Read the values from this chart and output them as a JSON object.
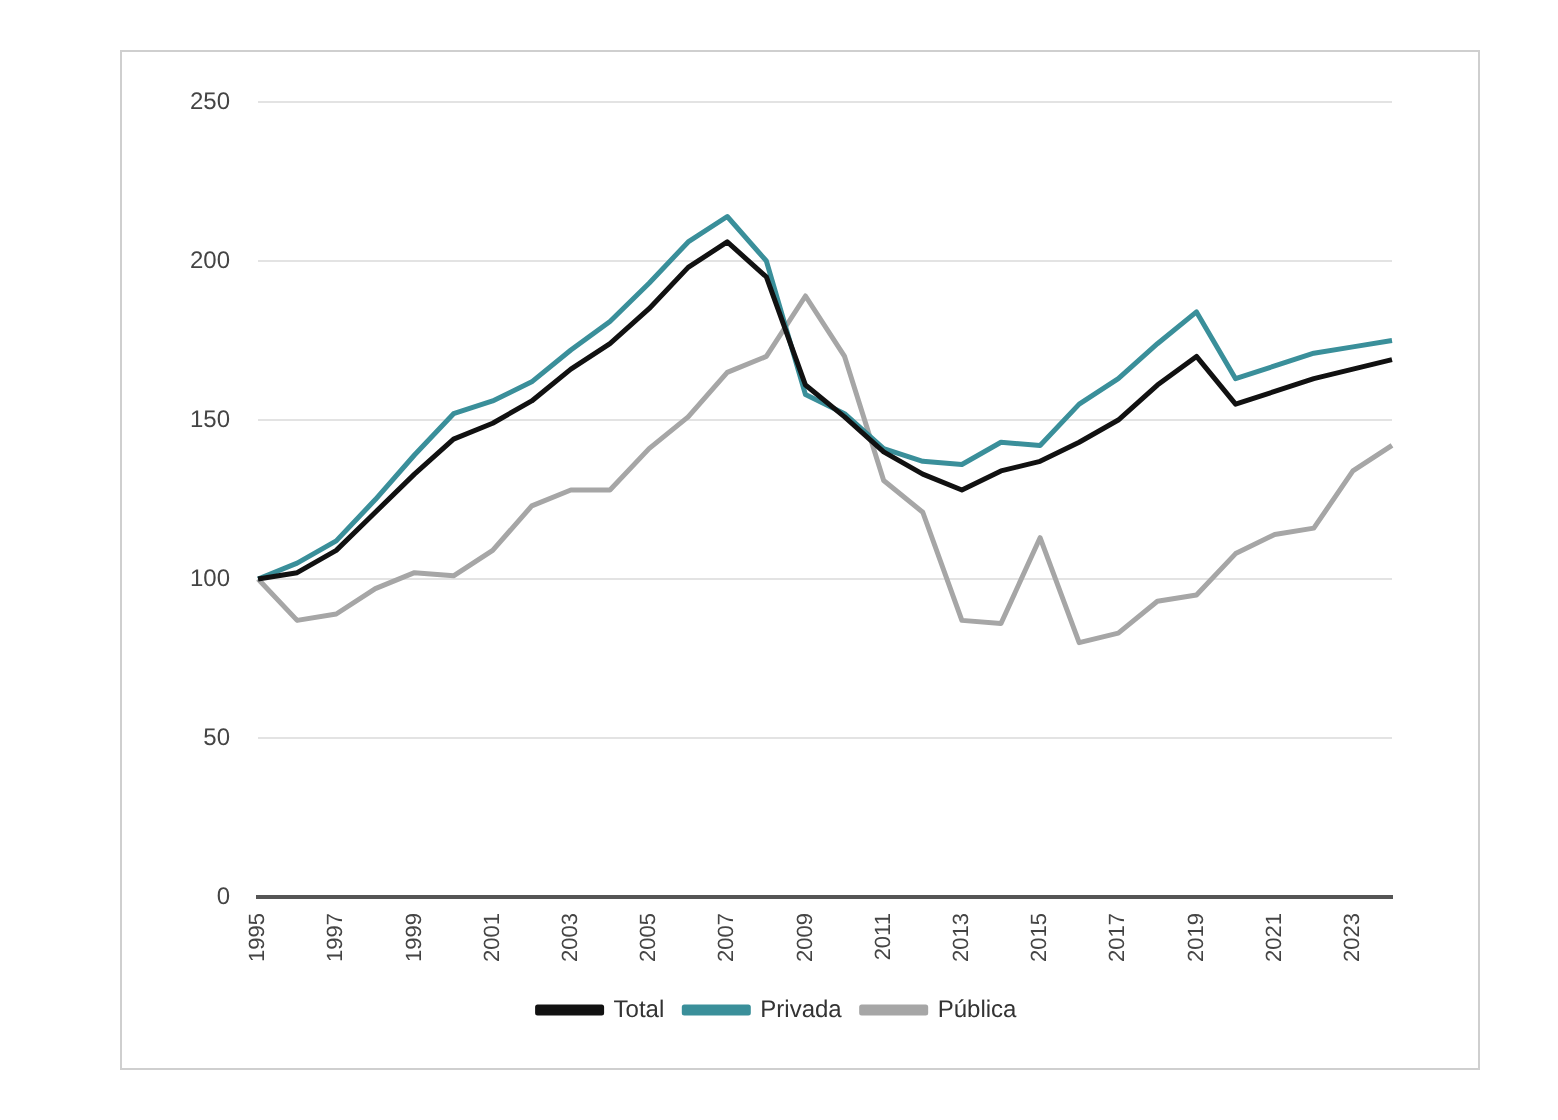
{
  "chart_data": {
    "type": "line",
    "categories": [
      "1995",
      null,
      "1997",
      null,
      "1999",
      null,
      "2001",
      null,
      "2003",
      null,
      "2005",
      null,
      "2007",
      null,
      "2009",
      null,
      "2011",
      null,
      "2013",
      null,
      "2015",
      null,
      "2017",
      null,
      "2019",
      null,
      "2021",
      null,
      "2023",
      null
    ],
    "series": [
      {
        "name": "Total",
        "color": "#111111",
        "values": [
          100,
          102,
          109,
          121,
          133,
          144,
          149,
          156,
          166,
          174,
          185,
          198,
          206,
          195,
          161,
          151,
          140,
          133,
          128,
          134,
          137,
          143,
          150,
          161,
          170,
          155,
          159,
          163,
          166,
          169
        ]
      },
      {
        "name": "Privada",
        "color": "#3a8f9a",
        "values": [
          100,
          105,
          112,
          125,
          139,
          152,
          156,
          162,
          172,
          181,
          193,
          206,
          214,
          200,
          158,
          152,
          141,
          137,
          136,
          143,
          142,
          155,
          163,
          174,
          184,
          163,
          167,
          171,
          173,
          175
        ]
      },
      {
        "name": "Pública",
        "color": "#a6a6a6",
        "values": [
          100,
          87,
          89,
          97,
          102,
          101,
          109,
          123,
          128,
          128,
          141,
          151,
          165,
          170,
          189,
          170,
          131,
          121,
          87,
          86,
          113,
          80,
          83,
          93,
          95,
          108,
          114,
          116,
          134,
          142
        ]
      }
    ],
    "ylim": [
      0,
      250
    ],
    "yticks": [
      0,
      50,
      100,
      150,
      200,
      250
    ],
    "grid": "y",
    "legend": "bottom",
    "marker": "none",
    "line_style": "solid"
  }
}
